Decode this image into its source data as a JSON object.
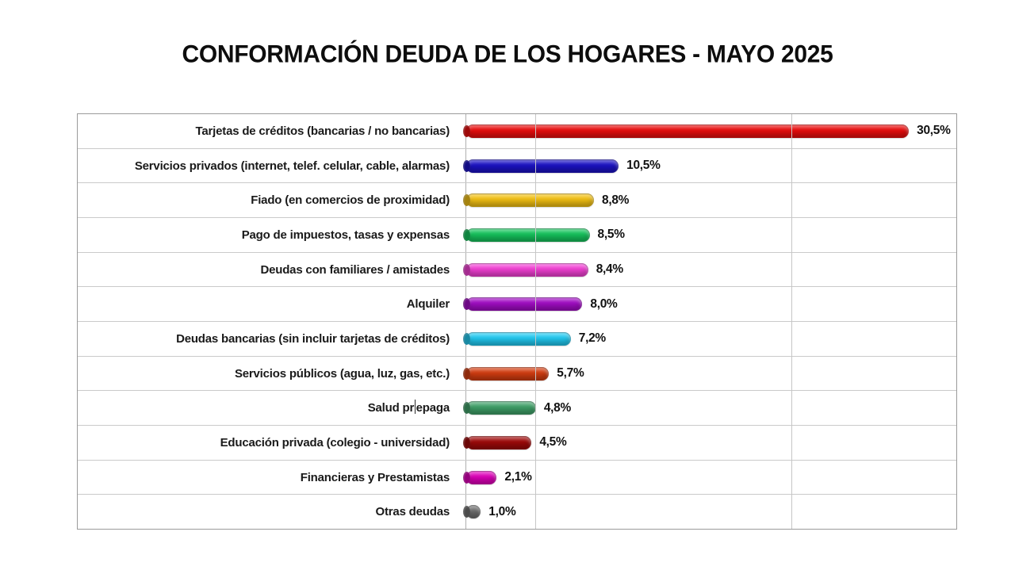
{
  "title": "CONFORMACIÓN DEUDA DE LOS HOGARES - MAYO 2025",
  "chart_data": {
    "type": "bar",
    "orientation": "horizontal",
    "title": "CONFORMACIÓN DEUDA DE LOS HOGARES - MAYO 2025",
    "unit": "%",
    "value_format": "comma-decimal",
    "xlim": [
      0,
      33.8
    ],
    "grid": "spreadsheet-style table grid, value labels at bar ends, no axis ticks, no legend",
    "bar_style": "glossy-pill",
    "categories": [
      "Tarjetas de créditos (bancarias / no bancarias)",
      "Servicios privados (internet, telef. celular, cable, alarmas)",
      "Fiado (en comercios de proximidad)",
      "Pago de impuestos, tasas y expensas",
      "Deudas con familiares / amistades",
      "Alquiler",
      "Deudas bancarias (sin incluir tarjetas de créditos)",
      "Servicios públicos (agua, luz, gas, etc.)",
      "Salud prepaga",
      "Educación privada (colegio - universidad)",
      "Financieras y Prestamistas",
      "Otras deudas"
    ],
    "values": [
      30.5,
      10.5,
      8.8,
      8.5,
      8.4,
      8.0,
      7.2,
      5.7,
      4.8,
      4.5,
      2.1,
      1.0
    ],
    "items": [
      {
        "category": "Tarjetas de créditos (bancarias / no bancarias)",
        "value": 30.5,
        "label": "30,5%",
        "color": "#e90d0d"
      },
      {
        "category": "Servicios privados (internet, telef. celular, cable, alarmas)",
        "value": 10.5,
        "label": "10,5%",
        "color": "#1b12c4"
      },
      {
        "category": "Fiado (en comercios de proximidad)",
        "value": 8.8,
        "label": "8,8%",
        "color": "#f2c014"
      },
      {
        "category": "Pago de impuestos, tasas y expensas",
        "value": 8.5,
        "label": "8,5%",
        "color": "#15c35c"
      },
      {
        "category": "Deudas con familiares / amistades",
        "value": 8.4,
        "label": "8,4%",
        "color": "#f241d4"
      },
      {
        "category": "Alquiler",
        "value": 8.0,
        "label": "8,0%",
        "color": "#a10cc4"
      },
      {
        "category": "Deudas bancarias (sin incluir tarjetas de créditos)",
        "value": 7.2,
        "label": "7,2%",
        "color": "#22c9f0"
      },
      {
        "category": "Servicios públicos (agua, luz, gas, etc.)",
        "value": 5.7,
        "label": "5,7%",
        "color": "#d23c10"
      },
      {
        "category": "Salud prepaga",
        "value": 4.8,
        "label": "4,8%",
        "color": "#3fa068",
        "cursor_index": 8
      },
      {
        "category": "Educación privada (colegio - universidad)",
        "value": 4.5,
        "label": "4,5%",
        "color": "#9e0909"
      },
      {
        "category": "Financieras y Prestamistas",
        "value": 2.1,
        "label": "2,1%",
        "color": "#dd00b8"
      },
      {
        "category": "Otras deudas",
        "value": 1.0,
        "label": "1,0%",
        "color": "#6f6f6f"
      }
    ]
  }
}
